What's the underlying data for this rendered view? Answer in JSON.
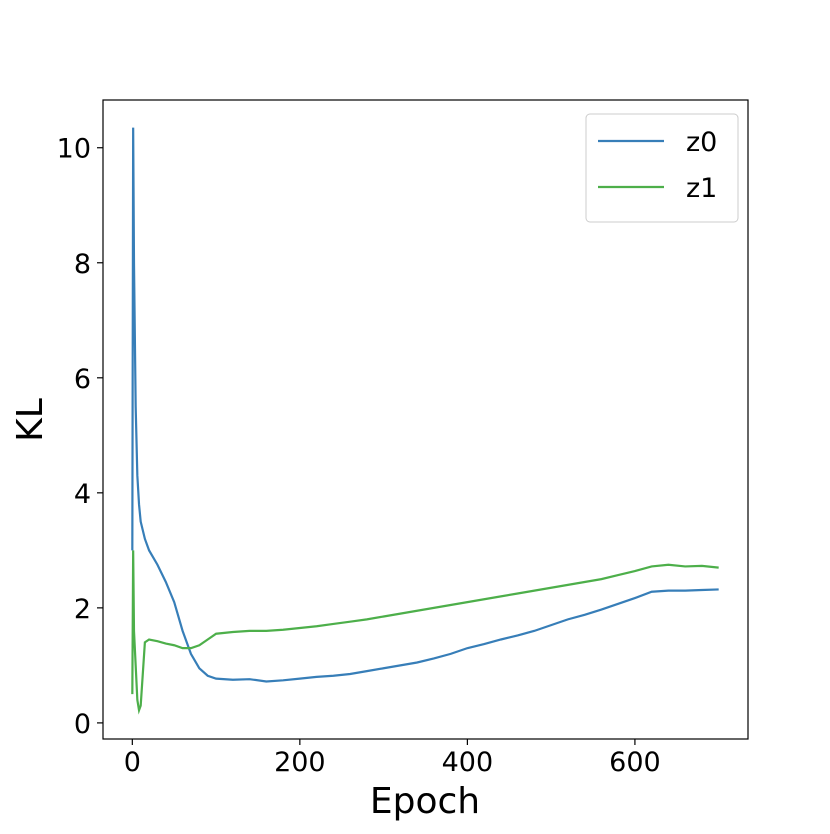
{
  "chart_data": {
    "type": "line",
    "xlabel": "Epoch",
    "ylabel": "KL",
    "x": [
      0,
      1,
      2,
      4,
      6,
      8,
      10,
      15,
      20,
      30,
      40,
      50,
      60,
      70,
      80,
      90,
      100,
      120,
      140,
      160,
      180,
      200,
      220,
      240,
      260,
      280,
      300,
      320,
      340,
      360,
      380,
      400,
      420,
      440,
      460,
      480,
      500,
      520,
      540,
      560,
      580,
      600,
      620,
      640,
      660,
      680,
      700
    ],
    "series": [
      {
        "name": "z0",
        "color": "#377eb8",
        "values": [
          3.0,
          10.35,
          8.0,
          5.5,
          4.3,
          3.8,
          3.5,
          3.2,
          3.0,
          2.75,
          2.45,
          2.1,
          1.6,
          1.2,
          0.95,
          0.82,
          0.77,
          0.75,
          0.76,
          0.72,
          0.74,
          0.77,
          0.8,
          0.82,
          0.85,
          0.9,
          0.95,
          1.0,
          1.05,
          1.12,
          1.2,
          1.3,
          1.37,
          1.45,
          1.52,
          1.6,
          1.7,
          1.8,
          1.88,
          1.97,
          2.07,
          2.17,
          2.28,
          2.3,
          2.3,
          2.31,
          2.32
        ]
      },
      {
        "name": "z1",
        "color": "#4daf4a",
        "values": [
          0.5,
          3.0,
          1.6,
          1.0,
          0.4,
          0.22,
          0.3,
          1.4,
          1.45,
          1.42,
          1.38,
          1.35,
          1.3,
          1.3,
          1.35,
          1.45,
          1.55,
          1.58,
          1.6,
          1.6,
          1.62,
          1.65,
          1.68,
          1.72,
          1.76,
          1.8,
          1.85,
          1.9,
          1.95,
          2.0,
          2.05,
          2.1,
          2.15,
          2.2,
          2.25,
          2.3,
          2.35,
          2.4,
          2.45,
          2.5,
          2.57,
          2.64,
          2.72,
          2.75,
          2.72,
          2.73,
          2.7
        ]
      }
    ],
    "xlim": [
      -35,
      735
    ],
    "ylim": [
      -0.28,
      10.83
    ],
    "xticks": [
      0,
      200,
      400,
      600
    ],
    "yticks": [
      0,
      2,
      4,
      6,
      8,
      10
    ],
    "legend": "upper right",
    "grid": false
  }
}
